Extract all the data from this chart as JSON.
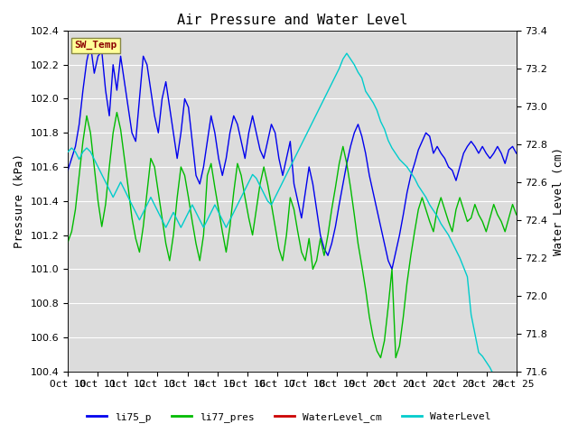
{
  "title": "Air Pressure and Water Level",
  "ylabel_left": "Pressure (kPa)",
  "ylabel_right": "Water Level (cm)",
  "ylim_left": [
    100.4,
    102.4
  ],
  "ylim_right": [
    71.6,
    73.4
  ],
  "yticks_left": [
    100.4,
    100.6,
    100.8,
    101.0,
    101.2,
    101.4,
    101.6,
    101.8,
    102.0,
    102.2,
    102.4
  ],
  "yticks_right": [
    71.6,
    71.8,
    72.0,
    72.2,
    72.4,
    72.6,
    72.8,
    73.0,
    73.2,
    73.4
  ],
  "xtick_labels": [
    "Oct 10",
    "Oct 11",
    "Oct 12",
    "Oct 13",
    "Oct 14",
    "Oct 15",
    "Oct 16",
    "Oct 17",
    "Oct 18",
    "Oct 19",
    "Oct 20",
    "Oct 21",
    "Oct 22",
    "Oct 23",
    "Oct 24",
    "Oct 25"
  ],
  "annotation_text": "SW_Temp",
  "annotation_color": "#8B0000",
  "annotation_bg": "#FFFF99",
  "line_colors": {
    "li75_p": "#0000EE",
    "li77_pres": "#00BB00",
    "WaterLevel_cm": "#CC0000",
    "WaterLevel": "#00CCCC"
  },
  "li75_p": [
    101.58,
    101.65,
    101.72,
    101.85,
    102.05,
    102.22,
    102.32,
    102.15,
    102.25,
    102.28,
    102.05,
    101.9,
    102.2,
    102.05,
    102.25,
    102.1,
    101.95,
    101.8,
    101.75,
    102.0,
    102.25,
    102.2,
    102.05,
    101.9,
    101.8,
    102.0,
    102.1,
    101.95,
    101.8,
    101.65,
    101.8,
    102.0,
    101.95,
    101.75,
    101.55,
    101.5,
    101.6,
    101.75,
    101.9,
    101.8,
    101.65,
    101.55,
    101.65,
    101.8,
    101.9,
    101.85,
    101.75,
    101.65,
    101.8,
    101.9,
    101.8,
    101.7,
    101.65,
    101.75,
    101.85,
    101.8,
    101.65,
    101.55,
    101.65,
    101.75,
    101.5,
    101.4,
    101.3,
    101.45,
    101.6,
    101.5,
    101.35,
    101.2,
    101.12,
    101.08,
    101.15,
    101.25,
    101.38,
    101.5,
    101.62,
    101.72,
    101.8,
    101.85,
    101.78,
    101.68,
    101.55,
    101.45,
    101.35,
    101.25,
    101.15,
    101.05,
    101.0,
    101.1,
    101.2,
    101.32,
    101.45,
    101.55,
    101.62,
    101.7,
    101.75,
    101.8,
    101.78,
    101.68,
    101.72,
    101.68,
    101.65,
    101.6,
    101.58,
    101.52,
    101.6,
    101.68,
    101.72,
    101.75,
    101.72,
    101.68,
    101.72,
    101.68,
    101.65,
    101.68,
    101.72,
    101.68,
    101.62,
    101.7,
    101.72,
    101.68
  ],
  "li77_pres": [
    101.16,
    101.22,
    101.35,
    101.55,
    101.75,
    101.9,
    101.8,
    101.6,
    101.4,
    101.25,
    101.38,
    101.6,
    101.8,
    101.92,
    101.82,
    101.65,
    101.48,
    101.3,
    101.18,
    101.1,
    101.25,
    101.45,
    101.65,
    101.6,
    101.45,
    101.3,
    101.15,
    101.05,
    101.2,
    101.42,
    101.6,
    101.55,
    101.42,
    101.28,
    101.15,
    101.05,
    101.2,
    101.55,
    101.62,
    101.48,
    101.35,
    101.22,
    101.1,
    101.25,
    101.45,
    101.62,
    101.55,
    101.42,
    101.3,
    101.2,
    101.35,
    101.5,
    101.6,
    101.5,
    101.38,
    101.25,
    101.12,
    101.05,
    101.2,
    101.42,
    101.35,
    101.22,
    101.1,
    101.05,
    101.18,
    101.0,
    101.05,
    101.18,
    101.08,
    101.2,
    101.35,
    101.48,
    101.62,
    101.72,
    101.62,
    101.48,
    101.32,
    101.15,
    101.02,
    100.88,
    100.72,
    100.6,
    100.52,
    100.48,
    100.58,
    100.78,
    101.0,
    100.48,
    100.55,
    100.72,
    100.92,
    101.08,
    101.22,
    101.35,
    101.42,
    101.35,
    101.28,
    101.22,
    101.35,
    101.42,
    101.35,
    101.28,
    101.22,
    101.35,
    101.42,
    101.35,
    101.28,
    101.3,
    101.38,
    101.32,
    101.28,
    101.22,
    101.3,
    101.38,
    101.32,
    101.28,
    101.22,
    101.3,
    101.38,
    101.32
  ],
  "WaterLevel": [
    72.76,
    72.78,
    72.76,
    72.72,
    72.76,
    72.78,
    72.76,
    72.72,
    72.68,
    72.64,
    72.6,
    72.56,
    72.52,
    72.56,
    72.6,
    72.56,
    72.52,
    72.48,
    72.44,
    72.4,
    72.44,
    72.48,
    72.52,
    72.48,
    72.44,
    72.4,
    72.36,
    72.4,
    72.44,
    72.4,
    72.36,
    72.4,
    72.44,
    72.48,
    72.44,
    72.4,
    72.36,
    72.4,
    72.44,
    72.48,
    72.44,
    72.4,
    72.36,
    72.4,
    72.44,
    72.48,
    72.52,
    72.56,
    72.6,
    72.64,
    72.62,
    72.58,
    72.54,
    72.5,
    72.48,
    72.52,
    72.56,
    72.6,
    72.64,
    72.68,
    72.72,
    72.76,
    72.8,
    72.84,
    72.88,
    72.92,
    72.96,
    73.0,
    73.04,
    73.08,
    73.12,
    73.16,
    73.2,
    73.25,
    73.28,
    73.25,
    73.22,
    73.18,
    73.15,
    73.08,
    73.05,
    73.02,
    72.98,
    72.92,
    72.88,
    72.82,
    72.78,
    72.75,
    72.72,
    72.7,
    72.68,
    72.65,
    72.62,
    72.58,
    72.55,
    72.52,
    72.48,
    72.45,
    72.42,
    72.38,
    72.35,
    72.32,
    72.28,
    72.24,
    72.2,
    72.15,
    72.1,
    71.9,
    71.8,
    71.7,
    71.68,
    71.65,
    71.62,
    71.58,
    71.55,
    71.52,
    71.48,
    71.44,
    71.4,
    71.36
  ],
  "background_color": "#DCDCDC",
  "grid_color": "#FFFFFF",
  "title_fontsize": 11,
  "axis_fontsize": 9,
  "tick_fontsize": 8
}
